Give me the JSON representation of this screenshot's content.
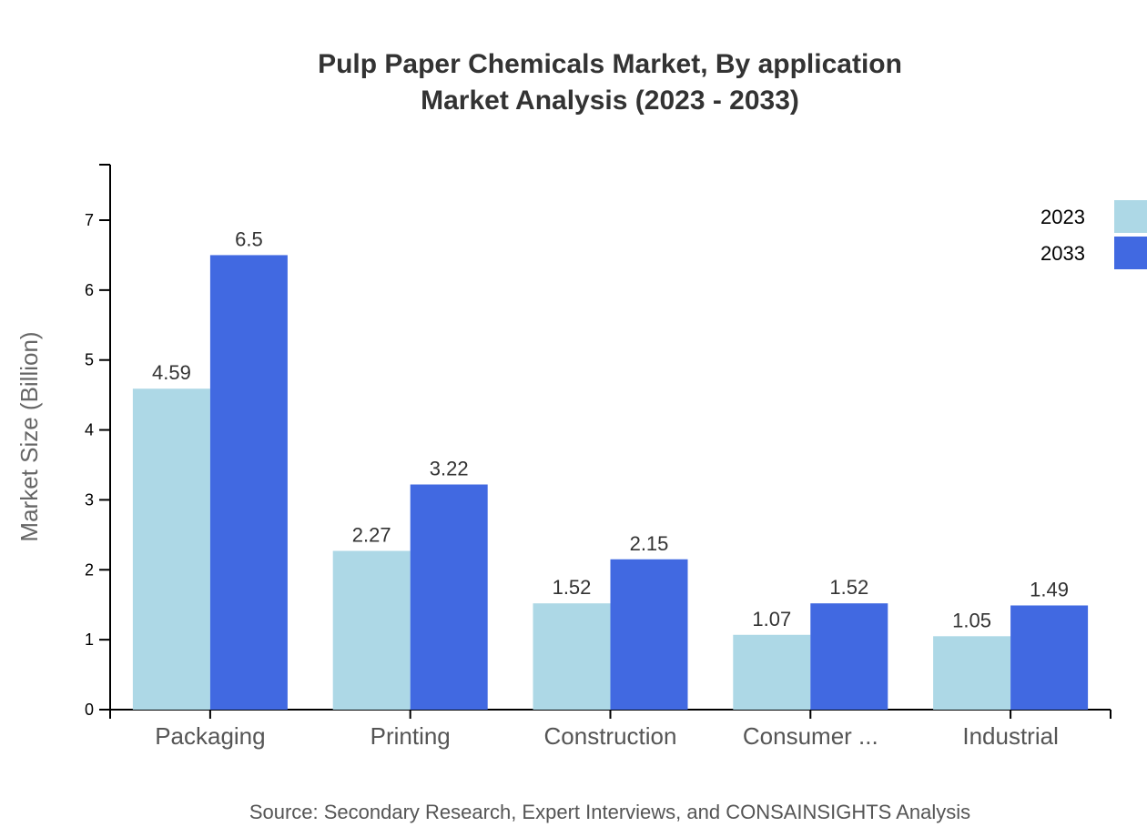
{
  "chart_data": {
    "type": "bar",
    "title": "Pulp Paper Chemicals Market, By application",
    "subtitle": "Market Analysis (2023 - 2033)",
    "xlabel": "",
    "ylabel": "Market Size (Billion)",
    "ylim": [
      0,
      7.8
    ],
    "yticks": [
      0,
      1,
      2,
      3,
      4,
      5,
      6,
      7
    ],
    "grid": false,
    "legend_position": "top-right",
    "categories": [
      "Packaging",
      "Printing",
      "Construction",
      "Consumer ...",
      "Industrial"
    ],
    "series": [
      {
        "name": "2023",
        "color": "#add8e6",
        "values": [
          4.59,
          2.27,
          1.52,
          1.07,
          1.05
        ]
      },
      {
        "name": "2033",
        "color": "#4169e1",
        "values": [
          6.5,
          3.22,
          2.15,
          1.52,
          1.49
        ]
      }
    ],
    "source": "Source: Secondary Research, Expert Interviews, and CONSAINSIGHTS Analysis"
  }
}
